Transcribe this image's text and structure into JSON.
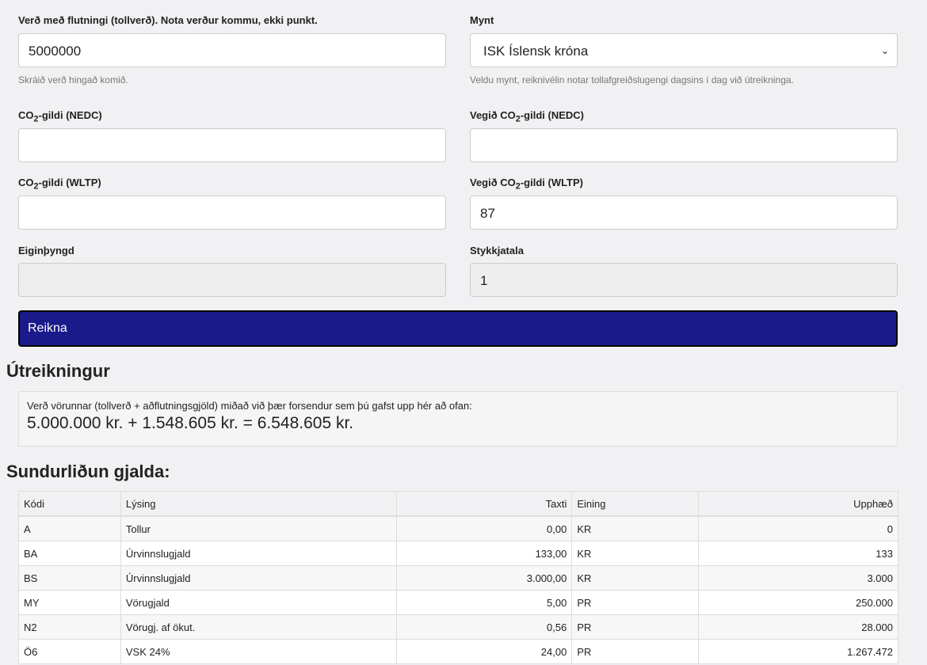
{
  "form": {
    "price": {
      "label": "Verð með flutningi (tollverð). Nota verður kommu, ekki punkt.",
      "value": "5000000",
      "help": "Skráið verð hingað komið."
    },
    "currency": {
      "label": "Mynt",
      "value": "ISK Íslensk króna",
      "help": "Veldu mynt, reiknivélin notar tollafgreiðslugengi dagsins í dag við útreikninga."
    },
    "co2_nedc": {
      "label_pre": "CO",
      "label_sub": "2",
      "label_post": "-gildi (NEDC)",
      "value": ""
    },
    "w_co2_nedc": {
      "label_pre": "Vegið CO",
      "label_sub": "2",
      "label_post": "-gildi (NEDC)",
      "value": ""
    },
    "co2_wltp": {
      "label_pre": "CO",
      "label_sub": "2",
      "label_post": "-gildi (WLTP)",
      "value": ""
    },
    "w_co2_wltp": {
      "label_pre": "Vegið CO",
      "label_sub": "2",
      "label_post": "-gildi (WLTP)",
      "value": "87"
    },
    "weight": {
      "label": "Eiginþyngd",
      "value": ""
    },
    "quantity": {
      "label": "Stykkjatala",
      "value": "1"
    },
    "submit": "Reikna"
  },
  "result": {
    "heading": "Útreikningur",
    "text": "Verð vörunnar (tollverð + aðflutningsgjöld) miðað við þær forsendur sem þú gafst upp hér að ofan:",
    "value": "5.000.000 kr. + 1.548.605 kr. = 6.548.605 kr."
  },
  "breakdown": {
    "heading": "Sundurliðun gjalda:",
    "columns": [
      "Kódi",
      "Lýsing",
      "Taxti",
      "Eining",
      "Upphæð"
    ],
    "rows": [
      [
        "A",
        "Tollur",
        "0,00",
        "KR",
        "0"
      ],
      [
        "BA",
        "Úrvinnslugjald",
        "133,00",
        "KR",
        "133"
      ],
      [
        "BS",
        "Úrvinnslugjald",
        "3.000,00",
        "KR",
        "3.000"
      ],
      [
        "MY",
        "Vörugjald",
        "5,00",
        "PR",
        "250.000"
      ],
      [
        "N2",
        "Vörugj. af ökut.",
        "0,56",
        "PR",
        "28.000"
      ],
      [
        "Ö6",
        "VSK 24%",
        "24,00",
        "PR",
        "1.267.472"
      ]
    ]
  },
  "colors": {
    "button": "#1a1a8a"
  }
}
